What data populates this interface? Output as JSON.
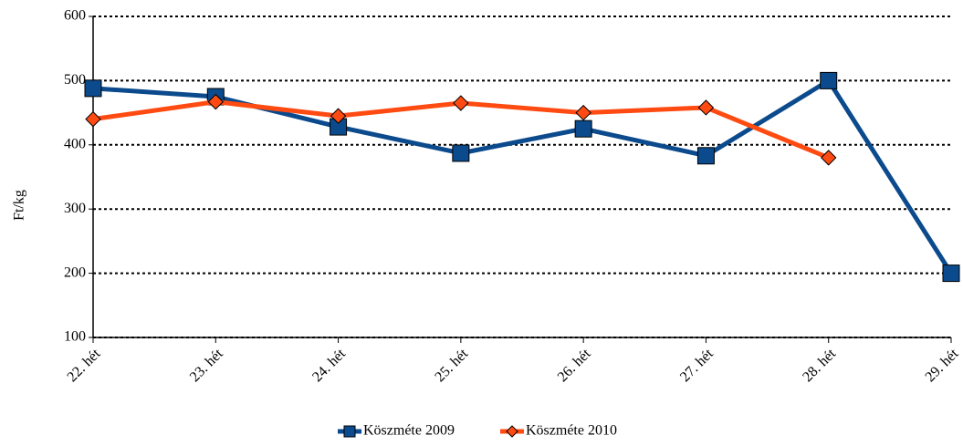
{
  "chart_data": {
    "type": "line",
    "y_label": "Ft/kg",
    "categories": [
      "22. hét",
      "23. hét",
      "24. hét",
      "25. hét",
      "26. hét",
      "27. hét",
      "28. hét",
      "29. hét"
    ],
    "series": [
      {
        "name": "Köszméte 2009",
        "color": "#0b4a8c",
        "marker": "square",
        "values": [
          488,
          475,
          428,
          387,
          425,
          383,
          500,
          200
        ]
      },
      {
        "name": "Köszméte 2010",
        "color": "#ff4b12",
        "marker": "diamond",
        "values": [
          440,
          467,
          445,
          465,
          450,
          458,
          380,
          null
        ]
      }
    ],
    "ylim": [
      100,
      600
    ],
    "yticks": [
      100,
      200,
      300,
      400,
      500,
      600
    ],
    "grid": true,
    "legend": "bottom"
  }
}
